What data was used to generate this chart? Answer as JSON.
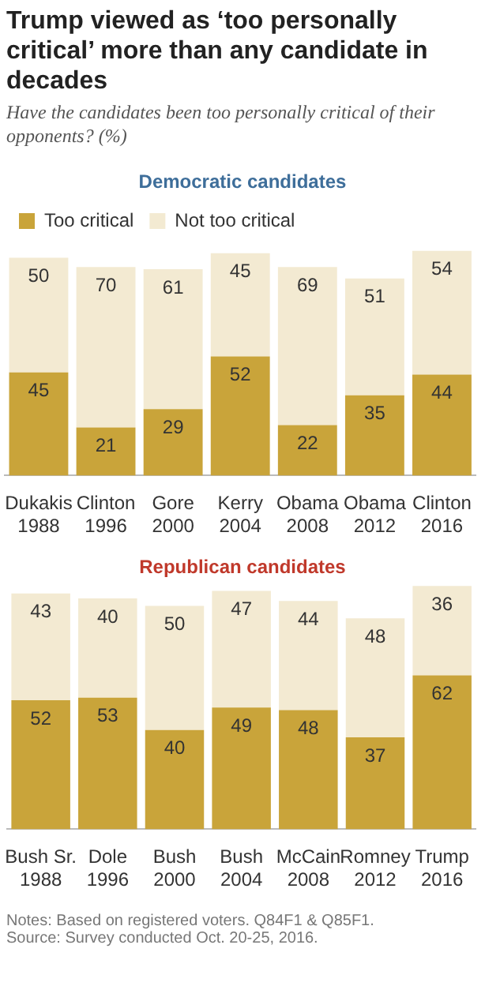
{
  "chart_data": [
    {
      "type": "bar",
      "title": "Trump viewed as ‘too personally critical’ more than any candidate in decades",
      "subtitle": "Have the candidates been too personally critical of their opponents? (%)",
      "annotations": [
        "Democratic candidates"
      ],
      "stacked": true,
      "data_labels": true,
      "legend": "top",
      "tick_labels": "x",
      "categories": [
        "Dukakis 1988",
        "Clinton 1996",
        "Gore 2000",
        "Kerry 2004",
        "Obama 2008",
        "Obama 2012",
        "Clinton 2016"
      ],
      "series": [
        {
          "name": "Too critical",
          "color": "#c9a43a",
          "values": [
            45,
            21,
            29,
            52,
            22,
            35,
            44
          ]
        },
        {
          "name": "Not too critical",
          "color": "#f3ead2",
          "values": [
            50,
            70,
            61,
            45,
            69,
            51,
            54
          ]
        }
      ]
    },
    {
      "type": "bar",
      "title": "Republican candidates",
      "annotations": [
        "Notes: Based on registered voters. Q84F1 & Q85F1.",
        "Source: Survey conducted Oct. 20-25, 2016."
      ],
      "stacked": true,
      "data_labels": true,
      "tick_labels": "x",
      "categories": [
        "Bush Sr. 1988",
        "Dole 1996",
        "Bush 2000",
        "Bush 2004",
        "McCain 2008",
        "Romney 2012",
        "Trump 2016"
      ],
      "series": [
        {
          "color": "#c9a43a",
          "values": [
            52,
            53,
            40,
            49,
            48,
            37,
            62
          ]
        },
        {
          "color": "#f3ead2",
          "values": [
            43,
            40,
            50,
            47,
            44,
            48,
            36
          ]
        }
      ]
    }
  ]
}
